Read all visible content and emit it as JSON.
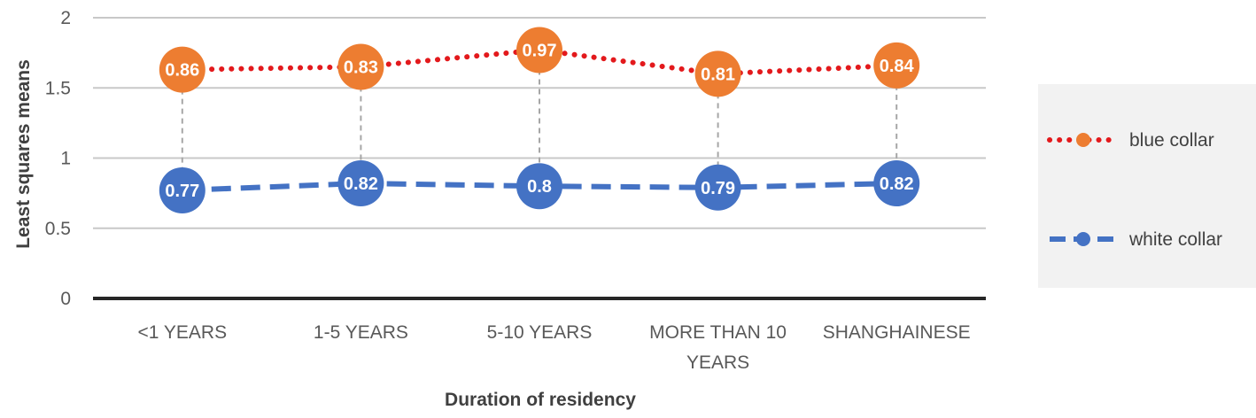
{
  "chart_data": {
    "type": "line",
    "title": "",
    "xlabel": "Duration of residency",
    "ylabel": "Least squares means",
    "ylim": [
      0,
      2
    ],
    "yticks": [
      0,
      0.5,
      1,
      1.5,
      2
    ],
    "ytick_labels": [
      "0",
      "0.5",
      "1",
      "1.5",
      "2"
    ],
    "grid": true,
    "legend_position": "right",
    "categories": [
      [
        "<1 YEARS"
      ],
      [
        "1-5 YEARS"
      ],
      [
        "5-10 YEARS"
      ],
      [
        "MORE THAN 10",
        "YEARS"
      ],
      [
        "SHANGHAINESE"
      ]
    ],
    "series": [
      {
        "name": "blue collar",
        "line_color": "#e3191c",
        "marker_color": "#ed7d31",
        "style": "dotted",
        "values": [
          1.63,
          1.65,
          1.77,
          1.6,
          1.66
        ],
        "labels": [
          "0.86",
          "0.83",
          "0.97",
          "0.81",
          "0.84"
        ]
      },
      {
        "name": "white collar",
        "line_color": "#4472c4",
        "marker_color": "#4472c4",
        "style": "dashed",
        "values": [
          0.77,
          0.82,
          0.8,
          0.79,
          0.82
        ],
        "labels": [
          "0.77",
          "0.82",
          "0.8",
          "0.79",
          "0.82"
        ]
      }
    ]
  }
}
